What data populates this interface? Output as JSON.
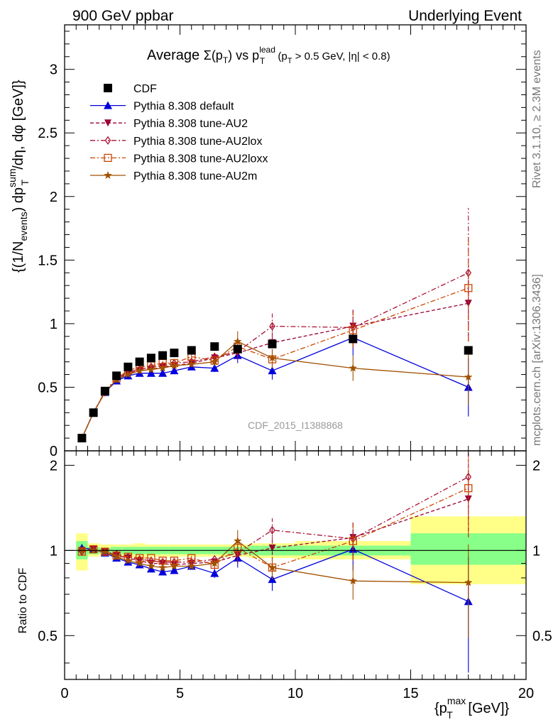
{
  "header": {
    "left": "900 GeV ppbar",
    "right": "Underlying Event"
  },
  "side_text": {
    "rivet": "Rivet 3.1.10, ≥ 2.3M events",
    "mcplots": "mcplots.cern.ch [arXiv:1306.3436]"
  },
  "watermark": "CDF_2015_I1388868",
  "colors": {
    "cdf": "#000000",
    "default": "#0000dd",
    "au2": "#990033",
    "au2lox": "#aa1133",
    "au2loxx": "#cc4400",
    "au2m": "#a05000",
    "band_yellow": "#ffff88",
    "band_green": "#88ff88"
  },
  "chart_data": [
    {
      "type": "scatter",
      "panel": "main",
      "title": "Average Σ(p_T) vs p_T^lead (p_T > 0.5 GeV, |η| < 0.8)",
      "title_parts": {
        "t1": "Average ",
        "t2": "Σ(p",
        "t3": "T",
        "t4": ") vs p",
        "t5": "lead",
        "t6": "T",
        "t7": " (p",
        "t8": "T",
        "t9": " > 0.5 GeV, |η| < 0.8)"
      },
      "xlabel": "{p_T^max [GeV]}",
      "ylabel": "{(1/N_events) dp_T^sum/dη, dφ [GeV]}",
      "ylabel_parts": {
        "a": "{(1/N",
        "b": "events",
        "c": ") dp",
        "d": "sum",
        "e": "T",
        "f": "/dη, dφ [GeV]}"
      },
      "xlim": [
        0,
        20
      ],
      "ylim": [
        0,
        3.35
      ],
      "yticks": [
        0,
        0.5,
        1,
        1.5,
        2,
        2.5,
        3
      ],
      "ytick_labels": [
        "0",
        "0.5",
        "1",
        "1.5",
        "2",
        "2.5",
        "3"
      ],
      "legend_position": "top-left",
      "series": [
        {
          "name": "CDF",
          "key": "cdf",
          "marker": "square-filled",
          "line": "none",
          "x": [
            0.75,
            1.25,
            1.75,
            2.25,
            2.75,
            3.25,
            3.75,
            4.25,
            4.75,
            5.5,
            6.5,
            7.5,
            9.0,
            12.5,
            17.5
          ],
          "y": [
            0.1,
            0.3,
            0.47,
            0.59,
            0.66,
            0.7,
            0.73,
            0.75,
            0.77,
            0.79,
            0.82,
            0.8,
            0.84,
            0.88,
            0.79
          ]
        },
        {
          "name": "Pythia 8.308 default",
          "key": "default",
          "marker": "triangle-up-filled",
          "line": "solid",
          "x": [
            0.75,
            1.25,
            1.75,
            2.25,
            2.75,
            3.25,
            3.75,
            4.25,
            4.75,
            5.5,
            6.5,
            7.5,
            9.0,
            12.5,
            17.5
          ],
          "y": [
            0.1,
            0.3,
            0.46,
            0.55,
            0.59,
            0.61,
            0.61,
            0.61,
            0.63,
            0.66,
            0.65,
            0.75,
            0.63,
            0.89,
            0.5
          ],
          "err": [
            0.005,
            0.005,
            0.01,
            0.01,
            0.01,
            0.01,
            0.01,
            0.015,
            0.015,
            0.02,
            0.03,
            0.06,
            0.07,
            0.14,
            0.23
          ]
        },
        {
          "name": "Pythia 8.308 tune-AU2",
          "key": "au2",
          "marker": "triangle-down-filled",
          "line": "dash",
          "x": [
            0.75,
            1.25,
            1.75,
            2.25,
            2.75,
            3.25,
            3.75,
            4.25,
            4.75,
            5.5,
            6.5,
            7.5,
            9.0,
            12.5,
            17.5
          ],
          "y": [
            0.1,
            0.3,
            0.46,
            0.56,
            0.61,
            0.63,
            0.64,
            0.66,
            0.67,
            0.69,
            0.73,
            0.77,
            0.85,
            0.98,
            1.16
          ],
          "err": [
            0.005,
            0.005,
            0.01,
            0.01,
            0.01,
            0.01,
            0.015,
            0.015,
            0.015,
            0.02,
            0.03,
            0.05,
            0.08,
            0.13,
            0.3
          ]
        },
        {
          "name": "Pythia 8.308 tune-AU2lox",
          "key": "au2lox",
          "marker": "diamond-open",
          "line": "dashdot",
          "x": [
            0.75,
            1.25,
            1.75,
            2.25,
            2.75,
            3.25,
            3.75,
            4.25,
            4.75,
            5.5,
            6.5,
            7.5,
            9.0,
            12.5,
            17.5
          ],
          "y": [
            0.1,
            0.3,
            0.46,
            0.57,
            0.62,
            0.64,
            0.66,
            0.67,
            0.69,
            0.7,
            0.74,
            0.78,
            0.98,
            0.97,
            1.4
          ],
          "err": [
            0.005,
            0.005,
            0.01,
            0.01,
            0.01,
            0.01,
            0.015,
            0.015,
            0.015,
            0.02,
            0.03,
            0.05,
            0.1,
            0.15,
            0.51
          ]
        },
        {
          "name": "Pythia 8.308 tune-AU2loxx",
          "key": "au2loxx",
          "marker": "square-open",
          "line": "dashdot",
          "x": [
            0.75,
            1.25,
            1.75,
            2.25,
            2.75,
            3.25,
            3.75,
            4.25,
            4.75,
            5.5,
            6.5,
            7.5,
            9.0,
            12.5,
            17.5
          ],
          "y": [
            0.1,
            0.3,
            0.47,
            0.57,
            0.63,
            0.66,
            0.67,
            0.69,
            0.69,
            0.74,
            0.71,
            0.82,
            0.72,
            0.95,
            1.28
          ],
          "err": [
            0.005,
            0.005,
            0.01,
            0.01,
            0.01,
            0.01,
            0.015,
            0.015,
            0.015,
            0.02,
            0.03,
            0.05,
            0.07,
            0.14,
            0.42
          ]
        },
        {
          "name": "Pythia 8.308 tune-AU2m",
          "key": "au2m",
          "marker": "star",
          "line": "solid",
          "x": [
            0.75,
            1.25,
            1.75,
            2.25,
            2.75,
            3.25,
            3.75,
            4.25,
            4.75,
            5.5,
            6.5,
            7.5,
            9.0,
            12.5,
            17.5
          ],
          "y": [
            0.1,
            0.3,
            0.46,
            0.56,
            0.6,
            0.63,
            0.64,
            0.65,
            0.67,
            0.68,
            0.7,
            0.86,
            0.73,
            0.65,
            0.58
          ],
          "err": [
            0.005,
            0.005,
            0.01,
            0.01,
            0.01,
            0.01,
            0.015,
            0.015,
            0.015,
            0.02,
            0.03,
            0.08,
            0.07,
            0.1,
            0.22
          ]
        }
      ]
    },
    {
      "type": "scatter",
      "panel": "ratio",
      "ylabel": "Ratio to CDF",
      "xlabel": "{p_T^max [GeV]}",
      "xlabel_parts": {
        "a": "{p",
        "b": "max",
        "c": "T",
        "d": " [GeV]}"
      },
      "xlim": [
        0,
        20
      ],
      "ylim": [
        0.35,
        2.25
      ],
      "xticks": [
        0,
        5,
        10,
        15,
        20
      ],
      "xtick_labels": [
        "0",
        "5",
        "10",
        "15",
        "20"
      ],
      "yticks": [
        0.5,
        1,
        2
      ],
      "ytick_labels": [
        "0.5",
        "1",
        "2"
      ],
      "bands": {
        "edges": [
          0.5,
          1.0,
          1.5,
          2.0,
          2.5,
          3.0,
          3.5,
          4.0,
          4.5,
          5.0,
          6.0,
          7.0,
          8.0,
          10.0,
          15.0,
          20.0
        ],
        "yellow": [
          [
            0.85,
            1.15
          ],
          [
            0.95,
            1.06
          ],
          [
            0.96,
            1.05
          ],
          [
            0.95,
            1.05
          ],
          [
            0.95,
            1.05
          ],
          [
            0.94,
            1.06
          ],
          [
            0.95,
            1.05
          ],
          [
            0.95,
            1.05
          ],
          [
            0.95,
            1.05
          ],
          [
            0.95,
            1.05
          ],
          [
            0.95,
            1.05
          ],
          [
            0.95,
            1.05
          ],
          [
            0.94,
            1.06
          ],
          [
            0.93,
            1.08
          ],
          [
            0.76,
            1.32
          ]
        ],
        "green": [
          [
            0.93,
            1.08
          ],
          [
            0.97,
            1.03
          ],
          [
            0.98,
            1.02
          ],
          [
            0.97,
            1.03
          ],
          [
            0.97,
            1.03
          ],
          [
            0.97,
            1.03
          ],
          [
            0.97,
            1.03
          ],
          [
            0.97,
            1.03
          ],
          [
            0.97,
            1.03
          ],
          [
            0.97,
            1.03
          ],
          [
            0.97,
            1.03
          ],
          [
            0.97,
            1.03
          ],
          [
            0.96,
            1.04
          ],
          [
            0.96,
            1.04
          ],
          [
            0.89,
            1.15
          ]
        ]
      },
      "series": [
        {
          "name": "Pythia 8.308 default",
          "key": "default",
          "y": [
            1.02,
            1.01,
            0.98,
            0.94,
            0.91,
            0.89,
            0.86,
            0.84,
            0.85,
            0.88,
            0.83,
            0.94,
            0.79,
            1.01,
            0.66
          ],
          "err": [
            0.02,
            0.01,
            0.01,
            0.01,
            0.01,
            0.01,
            0.01,
            0.02,
            0.02,
            0.02,
            0.03,
            0.07,
            0.07,
            0.16,
            0.29
          ]
        },
        {
          "name": "Pythia 8.308 tune-AU2",
          "key": "au2",
          "y": [
            1.0,
            1.01,
            0.99,
            0.96,
            0.94,
            0.92,
            0.9,
            0.9,
            0.89,
            0.9,
            0.91,
            0.96,
            1.02,
            1.11,
            1.52
          ],
          "err": [
            0.02,
            0.01,
            0.01,
            0.01,
            0.01,
            0.01,
            0.01,
            0.02,
            0.02,
            0.02,
            0.03,
            0.06,
            0.1,
            0.15,
            0.4
          ]
        },
        {
          "name": "Pythia 8.308 tune-AU2lox",
          "key": "au2lox",
          "y": [
            0.99,
            1.01,
            0.99,
            0.97,
            0.95,
            0.93,
            0.92,
            0.91,
            0.91,
            0.91,
            0.93,
            0.98,
            1.18,
            1.1,
            1.82
          ],
          "err": [
            0.02,
            0.01,
            0.01,
            0.01,
            0.01,
            0.01,
            0.01,
            0.02,
            0.02,
            0.02,
            0.03,
            0.06,
            0.12,
            0.17,
            0.66
          ]
        },
        {
          "name": "Pythia 8.308 tune-AU2loxx",
          "key": "au2loxx",
          "y": [
            0.99,
            1.01,
            0.99,
            0.96,
            0.95,
            0.94,
            0.94,
            0.92,
            0.92,
            0.94,
            0.89,
            1.02,
            0.87,
            1.08,
            1.66
          ],
          "err": [
            0.02,
            0.01,
            0.01,
            0.01,
            0.01,
            0.01,
            0.01,
            0.02,
            0.02,
            0.02,
            0.03,
            0.06,
            0.08,
            0.16,
            0.55
          ]
        },
        {
          "name": "Pythia 8.308 tune-AU2m",
          "key": "au2m",
          "y": [
            1.0,
            1.0,
            0.99,
            0.95,
            0.92,
            0.9,
            0.88,
            0.87,
            0.88,
            0.88,
            0.9,
            1.08,
            0.87,
            0.78,
            0.77
          ],
          "err": [
            0.02,
            0.01,
            0.01,
            0.01,
            0.01,
            0.01,
            0.01,
            0.02,
            0.02,
            0.02,
            0.03,
            0.1,
            0.08,
            0.11,
            0.28
          ]
        }
      ]
    }
  ]
}
